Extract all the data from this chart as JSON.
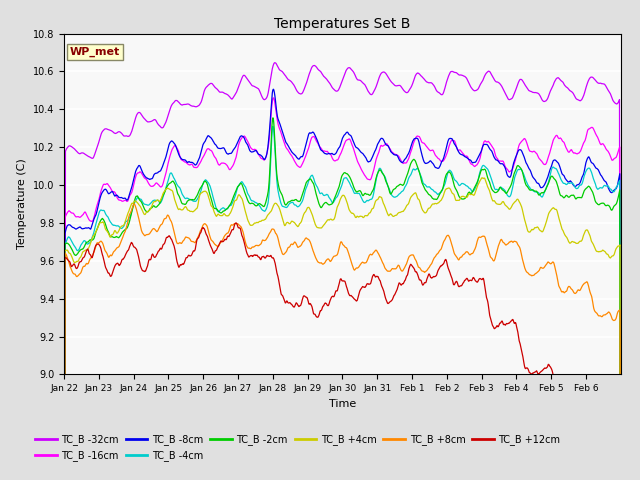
{
  "title": "Temperatures Set B",
  "xlabel": "Time",
  "ylabel": "Temperature (C)",
  "ylim": [
    9.0,
    10.8
  ],
  "yticks": [
    9.0,
    9.2,
    9.4,
    9.6,
    9.8,
    10.0,
    10.2,
    10.4,
    10.6,
    10.8
  ],
  "xtick_labels": [
    "Jan 22",
    "Jan 23",
    "Jan 24",
    "Jan 25",
    "Jan 26",
    "Jan 27",
    "Jan 28",
    "Jan 29",
    "Jan 30",
    "Jan 31",
    "Feb 1",
    "Feb 2",
    "Feb 3",
    "Feb 4",
    "Feb 5",
    "Feb 6"
  ],
  "legend_entries": [
    {
      "label": "TC_B -32cm",
      "color": "#CC00FF"
    },
    {
      "label": "TC_B -16cm",
      "color": "#FF00FF"
    },
    {
      "label": "TC_B -8cm",
      "color": "#0000EE"
    },
    {
      "label": "TC_B -4cm",
      "color": "#00CCCC"
    },
    {
      "label": "TC_B -2cm",
      "color": "#00CC00"
    },
    {
      "label": "TC_B +4cm",
      "color": "#CCCC00"
    },
    {
      "label": "TC_B +8cm",
      "color": "#FF8800"
    },
    {
      "label": "TC_B +12cm",
      "color": "#CC0000"
    }
  ],
  "wp_met_box_color": "#FFFFCC",
  "wp_met_text_color": "#880000",
  "background_color": "#E0E0E0",
  "plot_bg_color": "#F8F8F8",
  "n_points": 3840,
  "seed": 42
}
